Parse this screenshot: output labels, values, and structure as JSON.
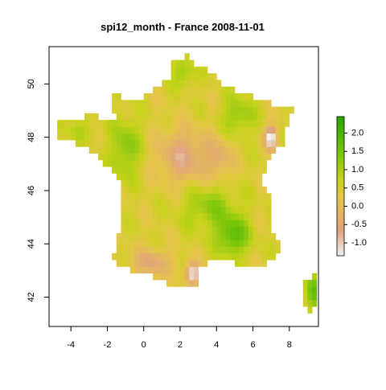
{
  "title": "spi12_month - France 2008-11-01",
  "map": {
    "xticks": [
      -4,
      -2,
      0,
      2,
      4,
      6,
      8
    ],
    "yticks": [
      42,
      44,
      46,
      48,
      50
    ],
    "xlim": [
      -5.2,
      9.6
    ],
    "ylim": [
      40.9,
      51.4
    ]
  },
  "legend": {
    "ticks": [
      "2.0",
      "1.5",
      "1.0",
      "0.5",
      "0.0",
      "-0.5",
      "-1.0"
    ],
    "tick_values": [
      2.0,
      1.5,
      1.0,
      0.5,
      0.0,
      -0.5,
      -1.0
    ],
    "range": [
      -1.35,
      2.45
    ],
    "colors": [
      "#f2f2f2",
      "#dfa37c",
      "#e6c64a",
      "#c6d21a",
      "#7cc70c",
      "#29a600"
    ]
  }
}
